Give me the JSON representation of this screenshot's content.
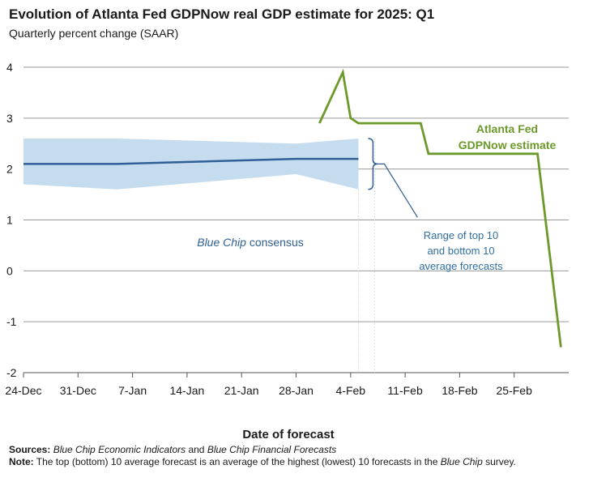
{
  "header": {
    "title": "Evolution of Atlanta Fed GDPNow real GDP estimate for 2025: Q1",
    "subtitle": "Quarterly percent change (SAAR)"
  },
  "footer": {
    "sources_label": "Sources:",
    "sources_part1": "Blue Chip Economic Indicators",
    "sources_and": " and ",
    "sources_part2": "Blue Chip Financial Forecasts",
    "note_label": "Note:",
    "note_text1": " The top (bottom) 10 average forecast is an average of the highest (lowest) 10 forecasts in the ",
    "note_italic": "Blue Chip",
    "note_text2": " survey."
  },
  "colors": {
    "gdpnow": "#6b9a2a",
    "consensus": "#2f5f95",
    "band": "#c5dcee",
    "annotation": "#2f6fa3",
    "grid": "#9a9a9a"
  },
  "chart_data": {
    "type": "line",
    "title": "Evolution of Atlanta Fed GDPNow real GDP estimate for 2025: Q1",
    "subtitle": "Quarterly percent change (SAAR)",
    "xlabel": "Date of forecast",
    "ylabel": "",
    "ylim": [
      -2,
      4
    ],
    "yticks": [
      4,
      3,
      2,
      1,
      0,
      -1,
      -2
    ],
    "xlim": [
      "2024-12-24",
      "2025-03-04"
    ],
    "xticks": [
      {
        "date": "2024-12-24",
        "label": "24-Dec"
      },
      {
        "date": "2024-12-31",
        "label": "31-Dec"
      },
      {
        "date": "2025-01-07",
        "label": "7-Jan"
      },
      {
        "date": "2025-01-14",
        "label": "14-Jan"
      },
      {
        "date": "2025-01-21",
        "label": "21-Jan"
      },
      {
        "date": "2025-01-28",
        "label": "28-Jan"
      },
      {
        "date": "2025-02-04",
        "label": "4-Feb"
      },
      {
        "date": "2025-02-11",
        "label": "11-Feb"
      },
      {
        "date": "2025-02-18",
        "label": "18-Feb"
      },
      {
        "date": "2025-02-25",
        "label": "25-Feb"
      }
    ],
    "grid": true,
    "series": [
      {
        "name": "Atlanta Fed GDPNow estimate",
        "x": [
          "2025-01-31",
          "2025-02-03",
          "2025-02-04",
          "2025-02-05",
          "2025-02-13",
          "2025-02-14",
          "2025-02-26",
          "2025-02-28",
          "2025-03-03"
        ],
        "y": [
          2.9,
          3.9,
          3.0,
          2.9,
          2.9,
          2.3,
          2.3,
          2.3,
          -1.5
        ]
      },
      {
        "name": "Blue Chip consensus",
        "x": [
          "2024-12-24",
          "2025-01-05",
          "2025-01-28",
          "2025-02-05"
        ],
        "y": [
          2.1,
          2.1,
          2.2,
          2.2
        ]
      },
      {
        "name": "Range of top 10 and bottom 10 average forecasts",
        "x": [
          "2024-12-24",
          "2025-01-05",
          "2025-01-28",
          "2025-02-05"
        ],
        "upper": [
          2.6,
          2.6,
          2.5,
          2.6
        ],
        "lower": [
          1.7,
          1.6,
          1.9,
          1.6
        ]
      }
    ],
    "annotations": [
      {
        "id": "gdpnow",
        "lines": [
          "Atlanta Fed",
          "GDPNow estimate"
        ]
      },
      {
        "id": "consensus",
        "italic": "Blue Chip",
        "text": " consensus"
      },
      {
        "id": "range",
        "lines": [
          "Range of top 10",
          "and bottom 10",
          "average forecasts"
        ]
      }
    ]
  }
}
